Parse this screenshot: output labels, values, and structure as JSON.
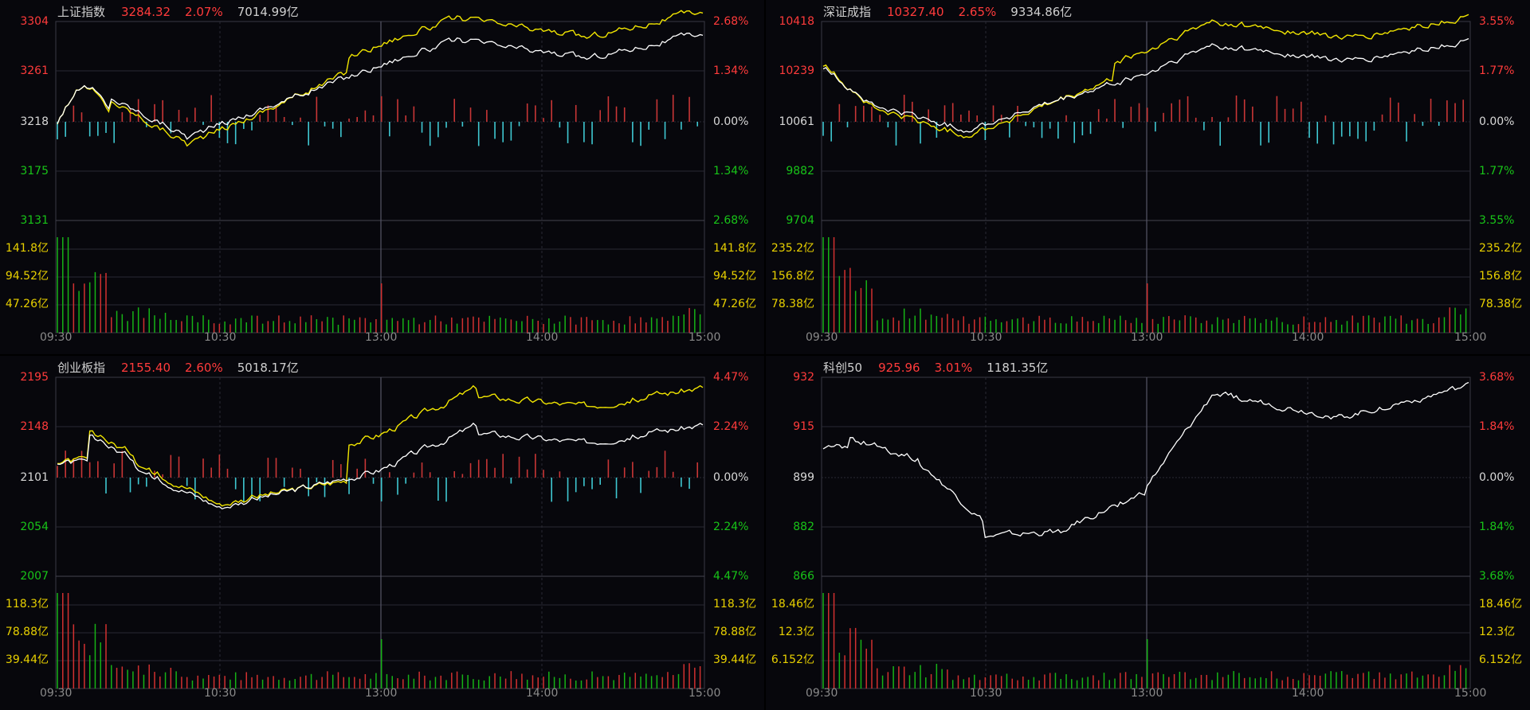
{
  "colors": {
    "up": "#ff3b3b",
    "down": "#18c418",
    "flat": "#d8d8d8",
    "volume_axis": "#e8d000",
    "price_line": "#ffffff",
    "avg_line": "#f2e600",
    "neg_bar": "#3fc8d2",
    "grid": "#2a2a33",
    "session_divider": "#555566"
  },
  "time_labels": [
    "09:30",
    "10:30",
    "13:00",
    "14:00",
    "15:00"
  ],
  "panels": [
    {
      "name": "上证指数",
      "price": "3284.32",
      "change": "2.07%",
      "amount": "7014.99亿",
      "left_axis": [
        "3304",
        "3261",
        "3218",
        "3175",
        "3131"
      ],
      "right_axis": [
        "2.68%",
        "1.34%",
        "0.00%",
        "1.34%",
        "2.68%"
      ],
      "volume_axis": [
        "141.8亿",
        "94.52亿",
        "47.26亿"
      ]
    },
    {
      "name": "深证成指",
      "price": "10327.40",
      "change": "2.65%",
      "amount": "9334.86亿",
      "left_axis": [
        "10418",
        "10239",
        "10061",
        "9882",
        "9704"
      ],
      "right_axis": [
        "3.55%",
        "1.77%",
        "0.00%",
        "1.77%",
        "3.55%"
      ],
      "volume_axis": [
        "235.2亿",
        "156.8亿",
        "78.38亿"
      ]
    },
    {
      "name": "创业板指",
      "price": "2155.40",
      "change": "2.60%",
      "amount": "5018.17亿",
      "left_axis": [
        "2195",
        "2148",
        "2101",
        "2054",
        "2007"
      ],
      "right_axis": [
        "4.47%",
        "2.24%",
        "0.00%",
        "2.24%",
        "4.47%"
      ],
      "volume_axis": [
        "118.3亿",
        "78.88亿",
        "39.44亿"
      ]
    },
    {
      "name": "科创50",
      "price": "925.96",
      "change": "3.01%",
      "amount": "1181.35亿",
      "left_axis": [
        "932",
        "915",
        "899",
        "882",
        "866"
      ],
      "right_axis": [
        "3.68%",
        "1.84%",
        "0.00%",
        "1.84%",
        "3.68%"
      ],
      "volume_axis": [
        "18.46亿",
        "12.3亿",
        "6.152亿"
      ]
    }
  ]
}
